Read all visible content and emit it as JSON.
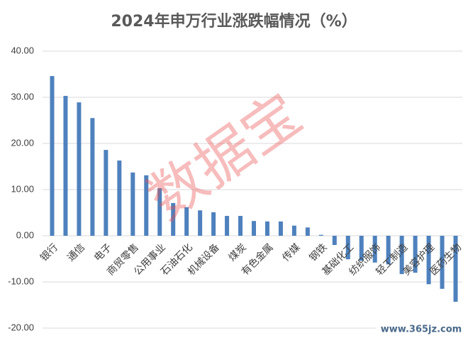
{
  "chart_data": {
    "type": "bar",
    "title": "2024年申万行业涨跌幅情况（%）",
    "categories": [
      "银行",
      null,
      "通信",
      null,
      "电子",
      null,
      "商贸零售",
      null,
      "公用事业",
      null,
      "石油石化",
      null,
      "机械设备",
      null,
      "煤炭",
      null,
      "有色金属",
      null,
      "传媒",
      null,
      "钢铁",
      null,
      "基础化工",
      null,
      "纺织服饰",
      null,
      "轻工制造",
      null,
      "美容护理",
      null,
      "医药生物"
    ],
    "values": [
      34.6,
      30.3,
      28.9,
      25.5,
      18.6,
      16.3,
      13.7,
      13.1,
      10.3,
      7.1,
      6.2,
      5.5,
      5.1,
      4.3,
      4.3,
      3.2,
      3.1,
      3.1,
      2.2,
      1.8,
      0.2,
      -2.0,
      -5.1,
      -5.4,
      -5.8,
      -6.2,
      -8.3,
      -8.0,
      -10.5,
      -11.5,
      -14.3
    ],
    "color": "#4e81bd",
    "ylim": [
      -20,
      40
    ],
    "yticks": [
      {
        "value": -20,
        "label": "-20.00"
      },
      {
        "value": -10,
        "label": "-10.00"
      },
      {
        "value": 0,
        "label": "0.00"
      },
      {
        "value": 10,
        "label": "10.00"
      },
      {
        "value": 20,
        "label": "20.00"
      },
      {
        "value": 30,
        "label": "30.00"
      },
      {
        "value": 40,
        "label": "40.00"
      }
    ],
    "grid": true,
    "watermark": "数据宝",
    "source_mark": "www.365jz.com"
  }
}
